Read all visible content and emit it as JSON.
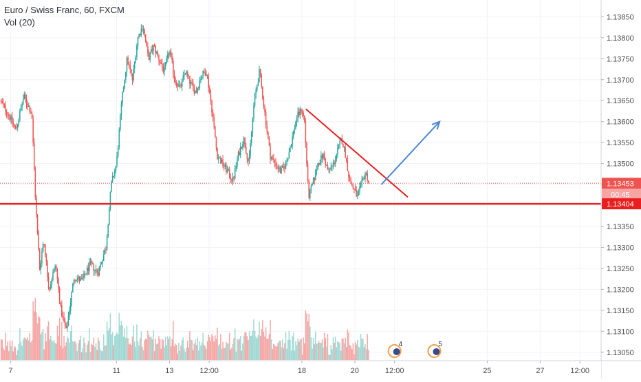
{
  "header": {
    "symbol_title": "Euro / Swiss Franc, 60, FXCM",
    "volume_label": "Vol (20)"
  },
  "colors": {
    "up": "#26a69a",
    "down": "#ef5350",
    "volume_up": "#9fd8d3",
    "volume_down": "#f5a6a4",
    "grid": "#f0f3fa",
    "axis_text": "#4a4a4a",
    "support_line": "#e91e1e",
    "trend_line": "#e91e1e",
    "arrow": "#4a86d4",
    "current_price_bg": "#ef5350",
    "support_price_bg": "#e91e1e"
  },
  "price_axis": {
    "ticks": [
      "1.13850",
      "1.13800",
      "1.13750",
      "1.13700",
      "1.13650",
      "1.13600",
      "1.13550",
      "1.13500",
      "1.13450",
      "1.13400",
      "1.13350",
      "1.13300",
      "1.13250",
      "1.13200",
      "1.13150",
      "1.13100",
      "1.13050"
    ],
    "current_price": "1.13453",
    "countdown": "00:45",
    "support_price": "1.13404"
  },
  "time_axis": {
    "ticks": [
      {
        "label": "7",
        "x": 7
      },
      {
        "label": "11",
        "x": 11
      },
      {
        "label": "13",
        "x": 13
      },
      {
        "label": "12:00",
        "x": 14.5
      },
      {
        "label": "18",
        "x": 18
      },
      {
        "label": "20",
        "x": 20
      },
      {
        "label": "12:00",
        "x": 21.5
      },
      {
        "label": "25",
        "x": 25
      },
      {
        "label": "27",
        "x": 27
      },
      {
        "label": "12:00",
        "x": 28.5
      }
    ]
  },
  "events": [
    {
      "icon": "economic-event-icon",
      "count": "4",
      "x": 21.5
    },
    {
      "icon": "economic-event-icon",
      "count": "5",
      "x": 23.0
    }
  ],
  "chart_data": {
    "type": "candlestick",
    "title": "Euro / Swiss Franc, 60, FXCM",
    "ylim": [
      1.1303,
      1.1389
    ],
    "xlim": [
      6.6,
      29.3
    ],
    "grid": true,
    "volume_indicator": "Vol (20)",
    "price_path": [
      [
        6.6,
        1.1365
      ],
      [
        6.9,
        1.1362
      ],
      [
        7.2,
        1.1358
      ],
      [
        7.5,
        1.1366
      ],
      [
        7.8,
        1.1362
      ],
      [
        7.95,
        1.134
      ],
      [
        8.1,
        1.1325
      ],
      [
        8.25,
        1.1332
      ],
      [
        8.45,
        1.132
      ],
      [
        8.7,
        1.1326
      ],
      [
        8.9,
        1.1315
      ],
      [
        9.1,
        1.131
      ],
      [
        9.4,
        1.1323
      ],
      [
        9.7,
        1.1322
      ],
      [
        10.0,
        1.1326
      ],
      [
        10.3,
        1.1324
      ],
      [
        10.6,
        1.133
      ],
      [
        10.8,
        1.1345
      ],
      [
        11.0,
        1.135
      ],
      [
        11.2,
        1.1365
      ],
      [
        11.4,
        1.1375
      ],
      [
        11.6,
        1.137
      ],
      [
        11.8,
        1.138
      ],
      [
        12.0,
        1.1383
      ],
      [
        12.2,
        1.1375
      ],
      [
        12.4,
        1.1378
      ],
      [
        12.6,
        1.1375
      ],
      [
        12.8,
        1.1372
      ],
      [
        13.0,
        1.1377
      ],
      [
        13.2,
        1.137
      ],
      [
        13.4,
        1.1368
      ],
      [
        13.6,
        1.1372
      ],
      [
        13.8,
        1.1369
      ],
      [
        14.0,
        1.1367
      ],
      [
        14.2,
        1.1371
      ],
      [
        14.4,
        1.1372
      ],
      [
        14.6,
        1.1363
      ],
      [
        14.8,
        1.1352
      ],
      [
        15.0,
        1.135
      ],
      [
        15.2,
        1.1348
      ],
      [
        15.4,
        1.1346
      ],
      [
        15.6,
        1.1352
      ],
      [
        15.8,
        1.1356
      ],
      [
        16.0,
        1.135
      ],
      [
        16.2,
        1.1365
      ],
      [
        16.4,
        1.1372
      ],
      [
        16.6,
        1.1362
      ],
      [
        16.8,
        1.1352
      ],
      [
        17.0,
        1.135
      ],
      [
        17.2,
        1.1348
      ],
      [
        17.4,
        1.135
      ],
      [
        17.6,
        1.1355
      ],
      [
        17.8,
        1.1361
      ],
      [
        18.0,
        1.1363
      ],
      [
        18.1,
        1.136
      ],
      [
        18.25,
        1.1342
      ],
      [
        18.45,
        1.1346
      ],
      [
        18.6,
        1.135
      ],
      [
        18.8,
        1.1352
      ],
      [
        19.0,
        1.1348
      ],
      [
        19.2,
        1.135
      ],
      [
        19.35,
        1.1353
      ],
      [
        19.5,
        1.1356
      ],
      [
        19.65,
        1.1352
      ],
      [
        19.8,
        1.1346
      ],
      [
        19.95,
        1.1344
      ],
      [
        20.1,
        1.1342
      ],
      [
        20.25,
        1.1345
      ],
      [
        20.4,
        1.1348
      ],
      [
        20.55,
        1.13453
      ]
    ],
    "support_level": 1.13404,
    "current_price": 1.13453,
    "trendline": {
      "from": [
        18.15,
        1.1363
      ],
      "to": [
        22.0,
        1.1342
      ]
    },
    "projection_arrow": {
      "from": [
        21.0,
        1.1345
      ],
      "to": [
        23.2,
        1.136
      ]
    }
  }
}
